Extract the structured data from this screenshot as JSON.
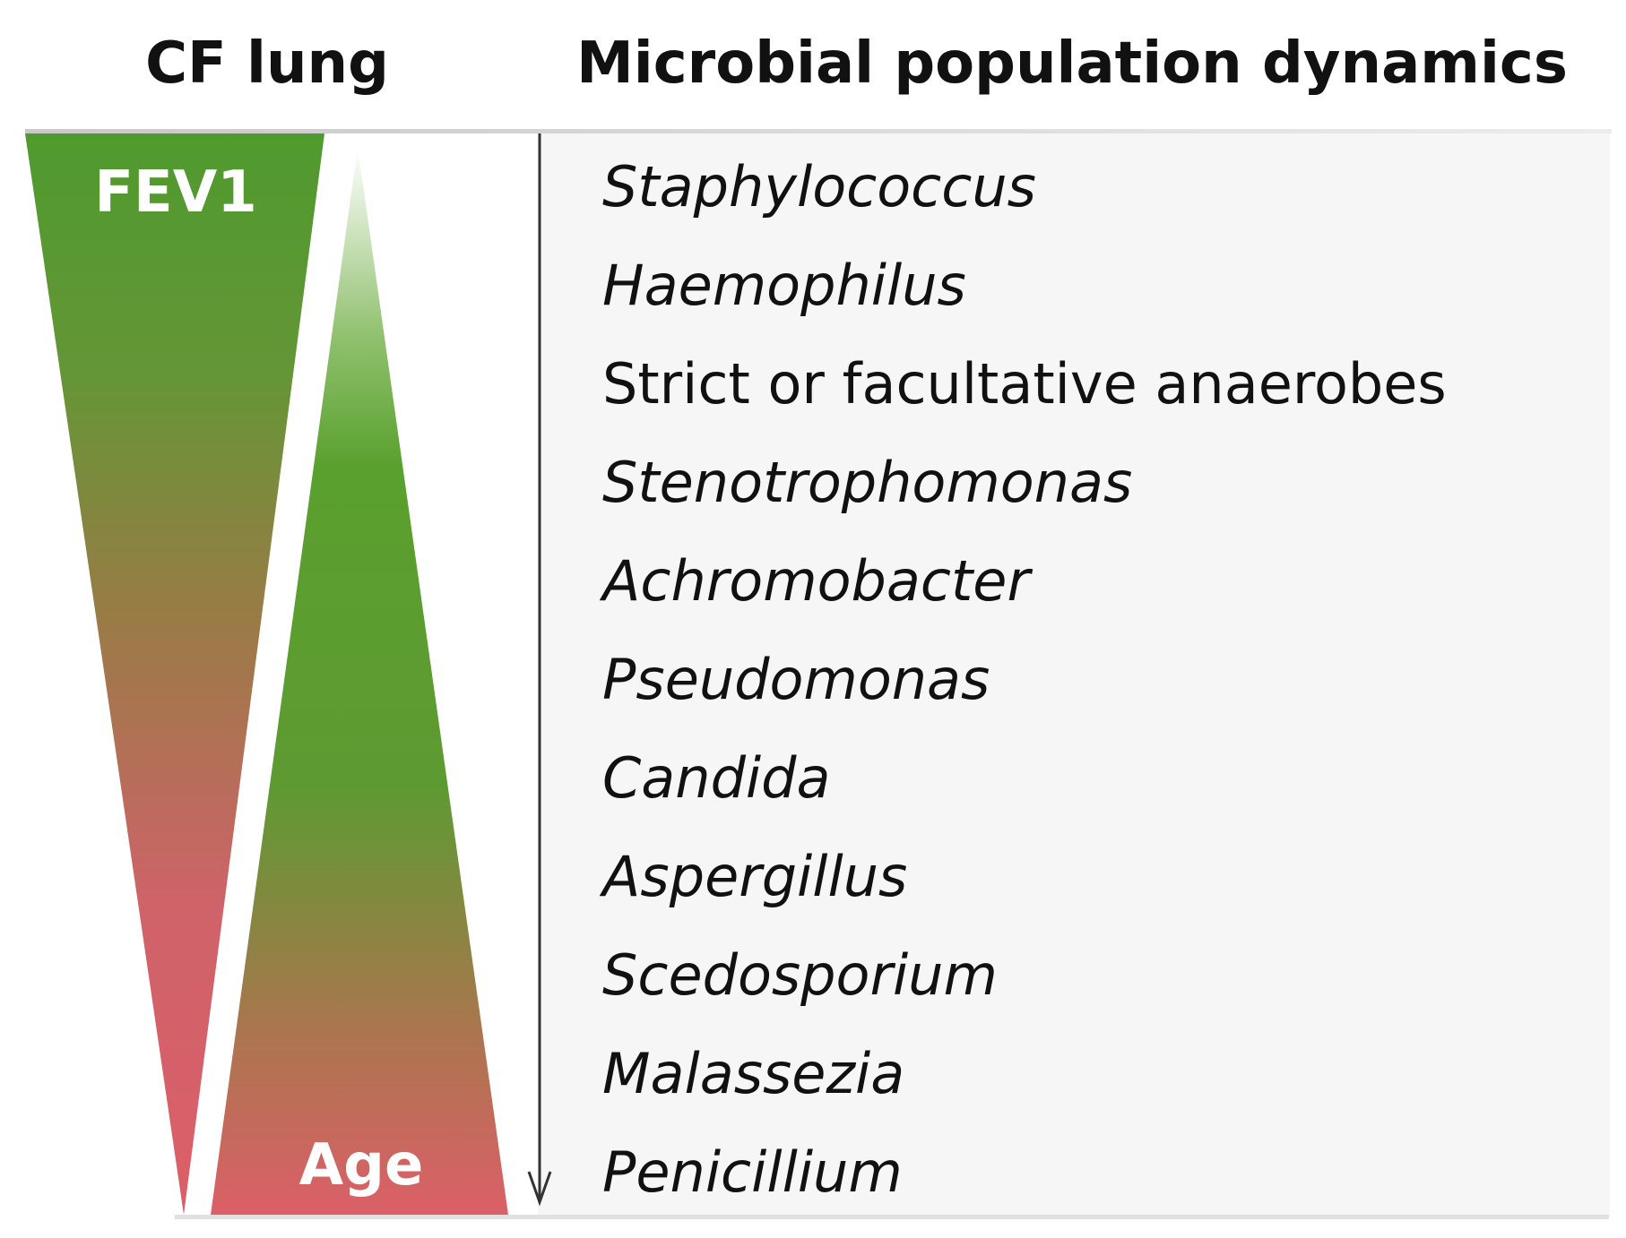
{
  "headings": {
    "left": "CF lung",
    "right": "Microbial population dynamics"
  },
  "wedges": {
    "fev1_label": "FEV1",
    "age_label": "Age"
  },
  "organisms": [
    {
      "name": "Staphylococcus",
      "italic": true
    },
    {
      "name": "Haemophilus",
      "italic": true
    },
    {
      "name": "Strict or facultative anaerobes",
      "italic": false
    },
    {
      "name": "Stenotrophomonas",
      "italic": true
    },
    {
      "name": "Achromobacter",
      "italic": true
    },
    {
      "name": "Pseudomonas",
      "italic": true
    },
    {
      "name": "Candida",
      "italic": true
    },
    {
      "name": "Aspergillus",
      "italic": true
    },
    {
      "name": "Scedosporium",
      "italic": true
    },
    {
      "name": "Malassezia",
      "italic": true
    },
    {
      "name": "Penicillium",
      "italic": true
    }
  ],
  "colors": {
    "green": "#5a9e2f",
    "brown": "#a67c4e",
    "red": "#d9606a",
    "panel": "#f6f6f6",
    "text": "#111111"
  }
}
